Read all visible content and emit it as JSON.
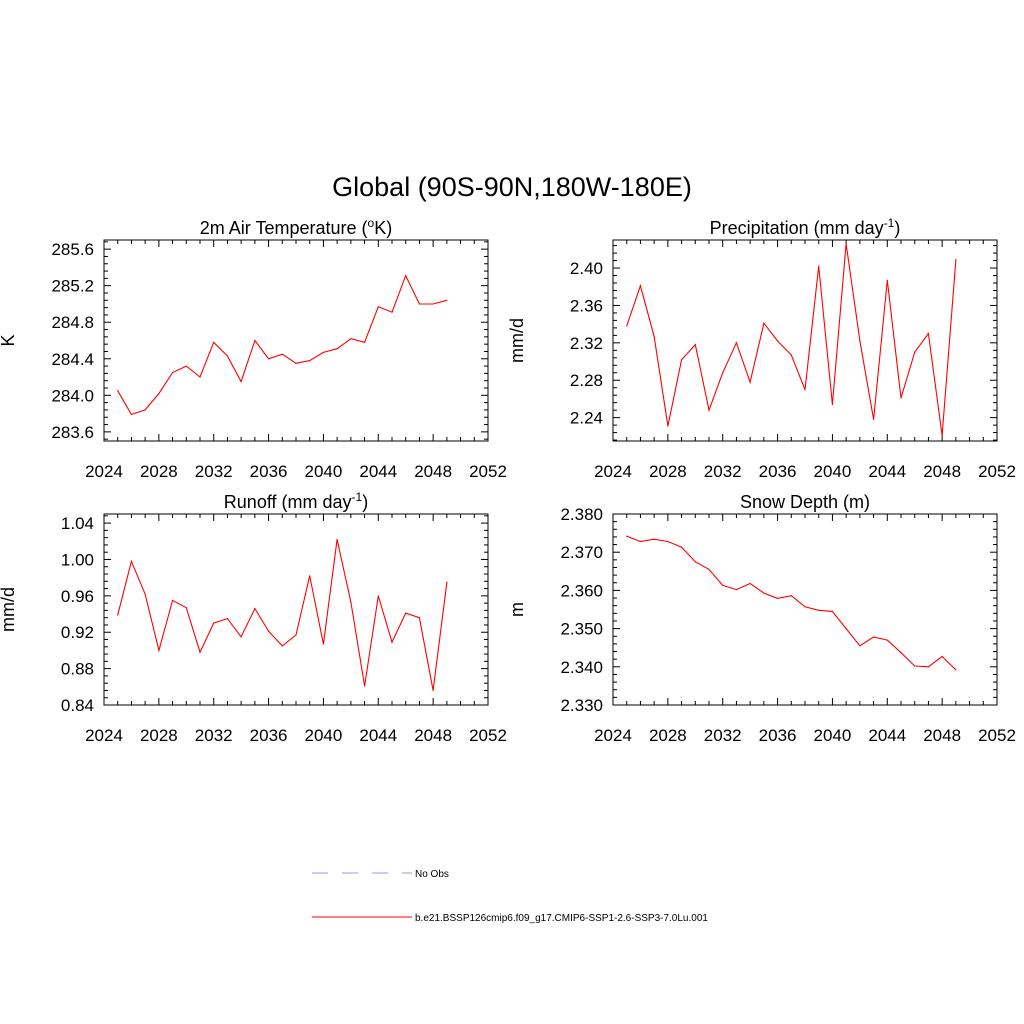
{
  "title": "Global (90S-90N,180W-180E)",
  "colors": {
    "series": "#ff0000",
    "obs": "#9999dd",
    "axis": "#000000"
  },
  "legend": {
    "entries": [
      {
        "label": "No Obs",
        "style": "dashed",
        "color": "#9999dd"
      },
      {
        "label": "b.e21.BSSP126cmip6.f09_g17.CMIP6-SSP1-2.6-SSP3-7.0Lu.001",
        "style": "solid",
        "color": "#ff0000"
      }
    ]
  },
  "chart_data": [
    {
      "type": "line",
      "title": "2m Air Temperature (",
      "title_sup": "o",
      "title_end": "K)",
      "xlabel": "",
      "ylabel": "K",
      "xlim": [
        2024,
        2052
      ],
      "ylim": [
        283.5,
        285.7
      ],
      "xticks": [
        2024,
        2028,
        2032,
        2036,
        2040,
        2044,
        2048,
        2052
      ],
      "yticks": [
        283.6,
        284.0,
        284.4,
        284.8,
        285.2,
        285.6
      ],
      "ytick_labels": [
        "283.6",
        "284.0",
        "284.4",
        "284.8",
        "285.2",
        "285.6"
      ],
      "grid": false,
      "series": [
        {
          "x": [
            2025,
            2026,
            2027,
            2028,
            2029,
            2030,
            2031,
            2032,
            2033,
            2034,
            2035,
            2036,
            2037,
            2038,
            2039,
            2040,
            2041,
            2042,
            2043,
            2044,
            2045,
            2046,
            2047,
            2048,
            2049
          ],
          "values": [
            284.05,
            283.79,
            283.84,
            284.02,
            284.25,
            284.32,
            284.2,
            284.58,
            284.43,
            284.15,
            284.6,
            284.4,
            284.45,
            284.35,
            284.38,
            284.47,
            284.51,
            284.62,
            284.58,
            284.97,
            284.91,
            285.31,
            285.0,
            285.0,
            285.04
          ]
        }
      ]
    },
    {
      "type": "line",
      "title": "Precipitation (mm day",
      "title_sup": "-1",
      "title_end": ")",
      "xlabel": "",
      "ylabel": "mm/d",
      "xlim": [
        2024,
        2052
      ],
      "ylim": [
        2.215,
        2.43
      ],
      "xticks": [
        2024,
        2028,
        2032,
        2036,
        2040,
        2044,
        2048,
        2052
      ],
      "yticks": [
        2.24,
        2.28,
        2.32,
        2.36,
        2.4
      ],
      "ytick_labels": [
        "2.24",
        "2.28",
        "2.32",
        "2.36",
        "2.40"
      ],
      "grid": false,
      "series": [
        {
          "x": [
            2025,
            2026,
            2027,
            2028,
            2029,
            2030,
            2031,
            2032,
            2033,
            2034,
            2035,
            2036,
            2037,
            2038,
            2039,
            2040,
            2041,
            2042,
            2043,
            2044,
            2045,
            2046,
            2047,
            2048,
            2049
          ],
          "values": [
            2.338,
            2.381,
            2.327,
            2.231,
            2.302,
            2.318,
            2.248,
            2.288,
            2.32,
            2.278,
            2.341,
            2.322,
            2.307,
            2.27,
            2.402,
            2.254,
            2.426,
            2.322,
            2.238,
            2.387,
            2.261,
            2.31,
            2.33,
            2.221,
            2.409
          ]
        }
      ]
    },
    {
      "type": "line",
      "title": "Runoff (mm day",
      "title_sup": "-1",
      "title_end": ")",
      "xlabel": "",
      "ylabel": "mm/d",
      "xlim": [
        2024,
        2052
      ],
      "ylim": [
        0.84,
        1.05
      ],
      "xticks": [
        2024,
        2028,
        2032,
        2036,
        2040,
        2044,
        2048,
        2052
      ],
      "yticks": [
        0.84,
        0.88,
        0.92,
        0.96,
        1.0,
        1.04
      ],
      "ytick_labels": [
        "0.84",
        "0.88",
        "0.92",
        "0.96",
        "1.00",
        "1.04"
      ],
      "grid": false,
      "series": [
        {
          "x": [
            2025,
            2026,
            2027,
            2028,
            2029,
            2030,
            2031,
            2032,
            2033,
            2034,
            2035,
            2036,
            2037,
            2038,
            2039,
            2040,
            2041,
            2042,
            2043,
            2044,
            2045,
            2046,
            2047,
            2048,
            2049
          ],
          "values": [
            0.939,
            0.998,
            0.962,
            0.9,
            0.955,
            0.947,
            0.898,
            0.93,
            0.935,
            0.915,
            0.946,
            0.921,
            0.905,
            0.917,
            0.982,
            0.907,
            1.022,
            0.953,
            0.861,
            0.96,
            0.909,
            0.941,
            0.936,
            0.856,
            0.975
          ]
        }
      ]
    },
    {
      "type": "line",
      "title": "Snow Depth (m)",
      "title_sup": "",
      "title_end": "",
      "xlabel": "",
      "ylabel": "m",
      "xlim": [
        2024,
        2052
      ],
      "ylim": [
        2.33,
        2.38
      ],
      "xticks": [
        2024,
        2028,
        2032,
        2036,
        2040,
        2044,
        2048,
        2052
      ],
      "yticks": [
        2.33,
        2.34,
        2.35,
        2.36,
        2.37,
        2.38
      ],
      "ytick_labels": [
        "2.330",
        "2.340",
        "2.350",
        "2.360",
        "2.370",
        "2.380"
      ],
      "grid": false,
      "series": [
        {
          "x": [
            2025,
            2026,
            2027,
            2028,
            2029,
            2030,
            2031,
            2032,
            2033,
            2034,
            2035,
            2036,
            2037,
            2038,
            2039,
            2040,
            2041,
            2042,
            2043,
            2044,
            2045,
            2046,
            2047,
            2048,
            2049
          ],
          "values": [
            2.3742,
            2.3728,
            2.3734,
            2.3728,
            2.3713,
            2.3675,
            2.3655,
            2.3613,
            2.3602,
            2.3618,
            2.3593,
            2.3579,
            2.3586,
            2.3557,
            2.3548,
            2.3545,
            2.35,
            2.3455,
            2.3478,
            2.347,
            2.3437,
            2.3402,
            2.34,
            2.3427,
            2.3392
          ]
        }
      ]
    }
  ]
}
